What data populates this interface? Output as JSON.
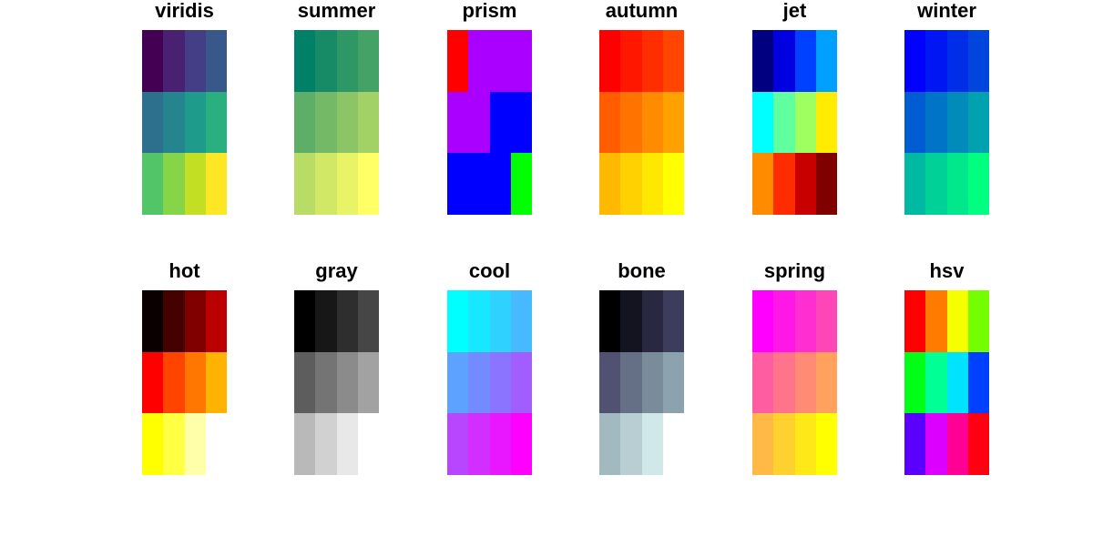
{
  "chart_data": [
    {
      "type": "heatmap",
      "title": "viridis",
      "rows": 3,
      "cols": 4,
      "colors": [
        "#440154",
        "#482173",
        "#433e85",
        "#38588c",
        "#2d708e",
        "#25858e",
        "#1e9b8a",
        "#2ab07f",
        "#52c569",
        "#86d549",
        "#c2df23",
        "#fde725"
      ]
    },
    {
      "type": "heatmap",
      "title": "summer",
      "rows": 3,
      "cols": 4,
      "colors": [
        "#008066",
        "#178b66",
        "#2e9766",
        "#45a266",
        "#5dae66",
        "#74b966",
        "#8bc566",
        "#a2d166",
        "#b9dc66",
        "#d1e866",
        "#e8f366",
        "#ffff66"
      ]
    },
    {
      "type": "heatmap",
      "title": "prism",
      "rows": 3,
      "cols": 4,
      "colors": [
        "#ff0000",
        "#aa00ff",
        "#aa00ff",
        "#aa00ff",
        "#aa00ff",
        "#aa00ff",
        "#0000ff",
        "#0000ff",
        "#0000ff",
        "#0000ff",
        "#0000ff",
        "#00ff00"
      ]
    },
    {
      "type": "heatmap",
      "title": "autumn",
      "rows": 3,
      "cols": 4,
      "colors": [
        "#ff0000",
        "#ff1700",
        "#ff2e00",
        "#ff4600",
        "#ff5d00",
        "#ff7400",
        "#ff8b00",
        "#ffa200",
        "#ffb900",
        "#ffd100",
        "#ffe800",
        "#ffff00"
      ]
    },
    {
      "type": "heatmap",
      "title": "jet",
      "rows": 3,
      "cols": 4,
      "colors": [
        "#000080",
        "#0000e0",
        "#0040ff",
        "#00a0ff",
        "#00ffff",
        "#60ffa0",
        "#a0ff60",
        "#ffec00",
        "#ff8c00",
        "#ff2c00",
        "#c80000",
        "#800000"
      ]
    },
    {
      "type": "heatmap",
      "title": "winter",
      "rows": 3,
      "cols": 4,
      "colors": [
        "#0000ff",
        "#0017f4",
        "#002ee8",
        "#0046dd",
        "#005dd1",
        "#0074c6",
        "#008bba",
        "#00a2af",
        "#00b9a2",
        "#00d197",
        "#00e88b",
        "#00ff80"
      ]
    },
    {
      "type": "heatmap",
      "title": "hot",
      "rows": 3,
      "cols": 4,
      "colors": [
        "#0b0000",
        "#450000",
        "#800000",
        "#bb0000",
        "#ff0000",
        "#ff4400",
        "#ff7700",
        "#ffb300",
        "#ffff00",
        "#ffff44",
        "#ffffaa",
        "#ffffff"
      ]
    },
    {
      "type": "heatmap",
      "title": "gray",
      "rows": 3,
      "cols": 4,
      "colors": [
        "#000000",
        "#171717",
        "#2e2e2e",
        "#464646",
        "#5d5d5d",
        "#747474",
        "#8b8b8b",
        "#a2a2a2",
        "#b9b9b9",
        "#d1d1d1",
        "#e8e8e8",
        "#ffffff"
      ]
    },
    {
      "type": "heatmap",
      "title": "cool",
      "rows": 3,
      "cols": 4,
      "colors": [
        "#00ffff",
        "#17e8ff",
        "#2ed1ff",
        "#46b9ff",
        "#5da2ff",
        "#748bff",
        "#8b74ff",
        "#a25dff",
        "#b946ff",
        "#d12eff",
        "#e817ff",
        "#ff00ff"
      ]
    },
    {
      "type": "heatmap",
      "title": "bone",
      "rows": 3,
      "cols": 4,
      "colors": [
        "#000000",
        "#141420",
        "#282840",
        "#3c3c5d",
        "#515172",
        "#656f86",
        "#798c9a",
        "#8ca2ae",
        "#a2b9bf",
        "#b9ced3",
        "#d1e8e8",
        "#ffffff"
      ]
    },
    {
      "type": "heatmap",
      "title": "spring",
      "rows": 3,
      "cols": 4,
      "colors": [
        "#ff00ff",
        "#ff17e8",
        "#ff2ed1",
        "#ff46b9",
        "#ff5da2",
        "#ff748b",
        "#ff8b74",
        "#ffa25d",
        "#ffb946",
        "#ffd12e",
        "#ffe817",
        "#ffff00"
      ]
    },
    {
      "type": "heatmap",
      "title": "hsv",
      "rows": 3,
      "cols": 4,
      "colors": [
        "#ff0000",
        "#ff7b00",
        "#f6ff00",
        "#73ff00",
        "#00ff17",
        "#00ff95",
        "#00e3ff",
        "#0041ff",
        "#5a00ff",
        "#db00ff",
        "#ff0094",
        "#ff0010"
      ]
    }
  ]
}
